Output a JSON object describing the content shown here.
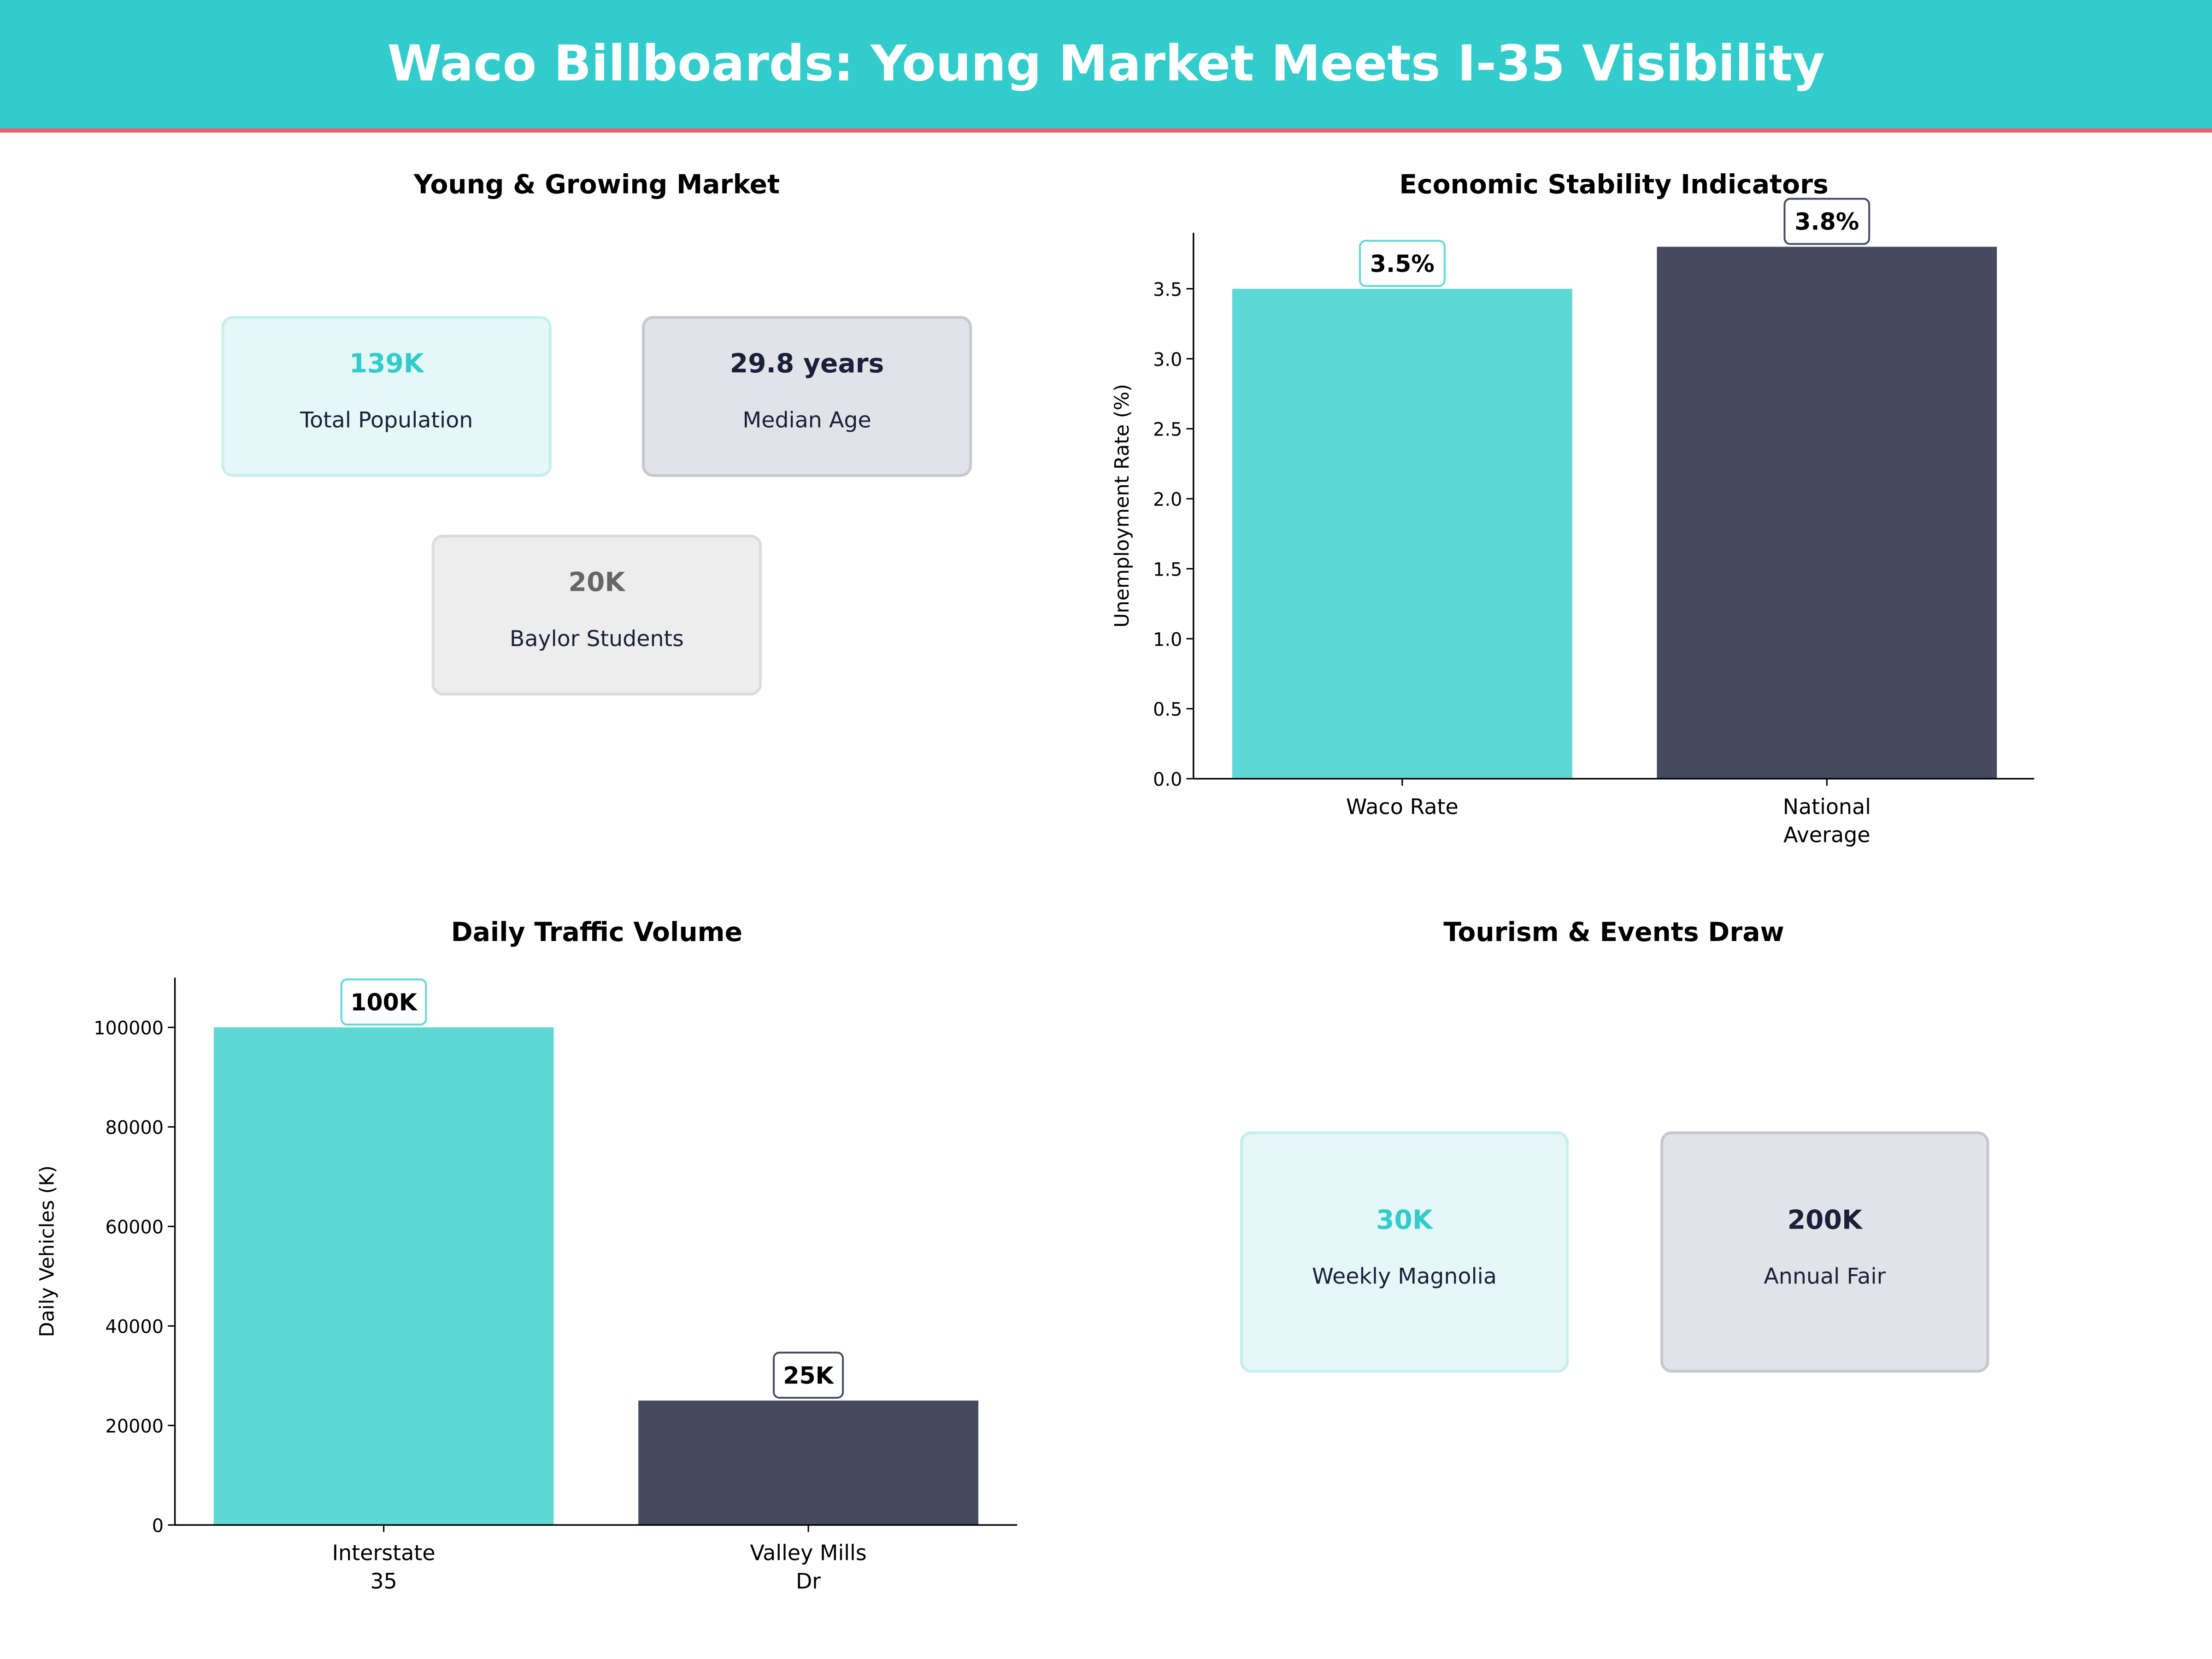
{
  "header": {
    "title": "Waco Billboards: Young Market Meets I-35 Visibility",
    "bg_color": "#33CCCC",
    "accent_line_color": "#E8636F"
  },
  "panels": {
    "market": {
      "title": "Young & Growing Market",
      "cards": [
        {
          "value": "139K",
          "label": "Total Population",
          "value_color": "#33CCCC",
          "bg": "#E6F7F7",
          "border": "#C8EEEE"
        },
        {
          "value": "29.8 years",
          "label": "Median Age",
          "value_color": "#1A1F3A",
          "bg": "#E2E3E8",
          "border": "#C6C7D0"
        },
        {
          "value": "20K",
          "label": "Baylor Students",
          "value_color": "#666666",
          "bg": "#EDEDED",
          "border": "#DCDCDC"
        }
      ]
    },
    "tourism": {
      "title": "Tourism & Events Draw",
      "cards": [
        {
          "value": "30K",
          "label": "Weekly Magnolia",
          "value_color": "#33CCCC",
          "bg": "#E6F7F7",
          "border": "#C8EEEE"
        },
        {
          "value": "200K",
          "label": "Annual Fair",
          "value_color": "#1A1F3A",
          "bg": "#E2E3E8",
          "border": "#C6C7D0"
        }
      ]
    }
  },
  "chart_data": [
    {
      "type": "bar",
      "title": "Economic Stability Indicators",
      "categories": [
        "Waco Rate",
        "National Average"
      ],
      "category_lines": [
        [
          "Waco Rate"
        ],
        [
          "National",
          "Average"
        ]
      ],
      "values": [
        3.5,
        3.8
      ],
      "data_labels": [
        "3.5%",
        "3.8%"
      ],
      "colors": [
        "#5DD8D5",
        "#454A5F"
      ],
      "ylabel": "Unemployment Rate (%)",
      "ylim": [
        0,
        3.9
      ],
      "yticks": [
        0.0,
        0.5,
        1.0,
        1.5,
        2.0,
        2.5,
        3.0,
        3.5
      ],
      "ytick_labels": [
        "0.0",
        "0.5",
        "1.0",
        "1.5",
        "2.0",
        "2.5",
        "3.0",
        "3.5"
      ],
      "grid": false
    },
    {
      "type": "bar",
      "title": "Daily Traffic Volume",
      "categories": [
        "Interstate 35",
        "Valley Mills Dr"
      ],
      "category_lines": [
        [
          "Interstate",
          "35"
        ],
        [
          "Valley Mills",
          "Dr"
        ]
      ],
      "values": [
        100000,
        25000
      ],
      "data_labels": [
        "100K",
        "25K"
      ],
      "colors": [
        "#5DD8D5",
        "#454A5F"
      ],
      "ylabel": "Daily Vehicles (K)",
      "ylim": [
        0,
        110000
      ],
      "yticks": [
        0,
        20000,
        40000,
        60000,
        80000,
        100000
      ],
      "ytick_labels": [
        "0",
        "20000",
        "40000",
        "60000",
        "80000",
        "100000"
      ],
      "grid": false
    }
  ]
}
